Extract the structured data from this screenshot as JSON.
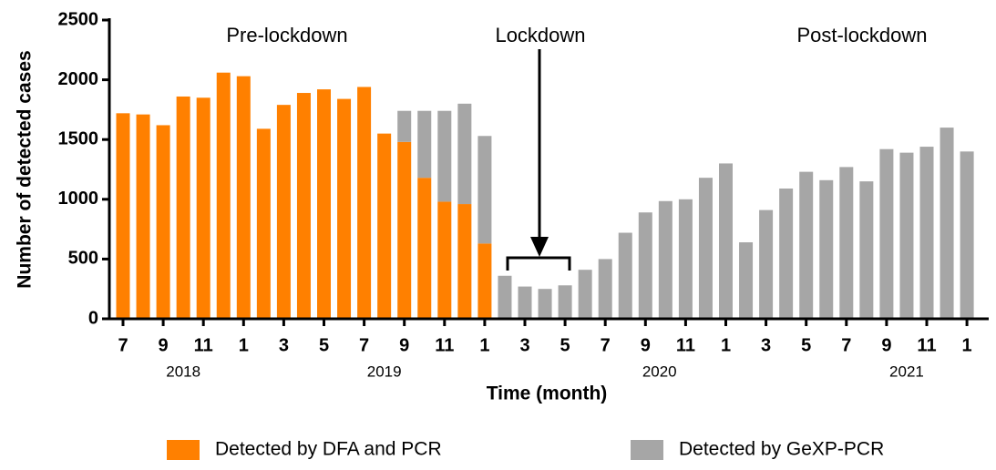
{
  "chart_data": {
    "type": "stacked-bar",
    "x_label": "Time (month)",
    "y_label": "Number of detected cases",
    "categories": [
      "7",
      null,
      "9",
      null,
      "11",
      null,
      "1",
      null,
      "3",
      null,
      "5",
      null,
      "7",
      null,
      "9",
      null,
      "11",
      null,
      "1",
      null,
      "3",
      null,
      "5",
      null,
      "7",
      null,
      "9",
      null,
      "11",
      null,
      "1",
      null,
      "3",
      null,
      "5",
      null,
      "7",
      null,
      "9",
      null,
      "11",
      null,
      "1"
    ],
    "year_labels": [
      "2018",
      "2019",
      "2020",
      "2021"
    ],
    "annotations": [
      "Pre-lockdown",
      "Lockdown",
      "Post-lockdown"
    ],
    "series": [
      {
        "name": "Detected by DFA and PCR",
        "color": "#ff8000",
        "values": [
          1720,
          1710,
          1620,
          1860,
          1850,
          2060,
          2030,
          1590,
          1790,
          1890,
          1920,
          1840,
          1940,
          1550,
          1480,
          1180,
          980,
          960,
          630,
          null,
          null,
          null,
          null,
          null,
          null,
          null,
          null,
          null,
          null,
          null,
          null,
          null,
          null,
          null,
          null,
          null,
          null,
          null,
          null,
          null,
          null,
          null,
          null
        ]
      },
      {
        "name": "Detected by GeXP-PCR",
        "color": "#a6a6a6",
        "values": [
          null,
          null,
          null,
          null,
          null,
          null,
          null,
          null,
          null,
          null,
          null,
          null,
          null,
          null,
          260,
          560,
          760,
          840,
          900,
          360,
          270,
          250,
          280,
          410,
          500,
          720,
          890,
          985,
          1000,
          1180,
          1300,
          640,
          910,
          1090,
          1230,
          1160,
          1270,
          1150,
          1420,
          1390,
          1440,
          1600,
          1400
        ]
      }
    ],
    "ylim": [
      0,
      2500
    ],
    "yticks": [
      0,
      500,
      1000,
      1500,
      2000,
      2500
    ]
  }
}
